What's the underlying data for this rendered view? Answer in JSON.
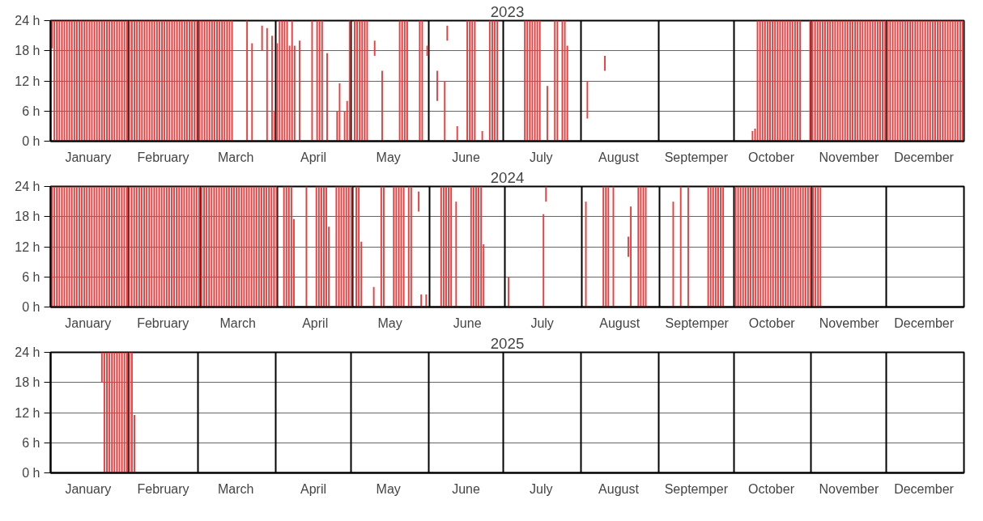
{
  "chart_data": [
    {
      "type": "bar",
      "title": "2023",
      "color": "#f03c3c",
      "grid": true,
      "xlim": [
        "2023-01-01",
        "2024-01-01"
      ],
      "xticks": [
        {
          "value": "2023-01-16",
          "label": "January"
        },
        {
          "value": "2023-02-01",
          "label": null
        },
        {
          "value": "2023-02-15",
          "label": "February"
        },
        {
          "value": "2023-03-01",
          "label": null
        },
        {
          "value": "2023-03-16",
          "label": "March"
        },
        {
          "value": "2023-04-01",
          "label": null
        },
        {
          "value": "2023-04-16",
          "label": "April"
        },
        {
          "value": "2023-05-01",
          "label": null
        },
        {
          "value": "2023-05-16",
          "label": "May"
        },
        {
          "value": "2023-06-01",
          "label": null
        },
        {
          "value": "2023-06-16",
          "label": "June"
        },
        {
          "value": "2023-07-01",
          "label": null
        },
        {
          "value": "2023-07-16",
          "label": "July"
        },
        {
          "value": "2023-08-01",
          "label": null
        },
        {
          "value": "2023-08-16",
          "label": "August"
        },
        {
          "value": "2023-09-01",
          "label": null
        },
        {
          "value": "2023-09-16",
          "label": "Septemper"
        },
        {
          "value": "2023-10-01",
          "label": null
        },
        {
          "value": "2023-10-16",
          "label": "October"
        },
        {
          "value": "2023-11-01",
          "label": null
        },
        {
          "value": "2023-11-16",
          "label": "November"
        },
        {
          "value": "2023-12-01",
          "label": null
        },
        {
          "value": "2023-12-16",
          "label": "December"
        }
      ],
      "ylim": [
        0,
        24
      ],
      "yticks": [
        {
          "value": 0,
          "label": "0 h"
        },
        {
          "value": 6,
          "label": "6 h"
        },
        {
          "value": 12,
          "label": "12 h"
        },
        {
          "value": 18,
          "label": "18 h"
        },
        {
          "value": 24,
          "label": "24 h"
        }
      ],
      "x": [
        "2023-01-01",
        "2023-01-02",
        "2023-01-03",
        "2023-01-04",
        "2023-01-05",
        "2023-01-06",
        "2023-01-07",
        "2023-01-08",
        "2023-01-09",
        "2023-01-10",
        "2023-01-11",
        "2023-01-12",
        "2023-01-13",
        "2023-01-14",
        "2023-01-15",
        "2023-01-16",
        "2023-01-17",
        "2023-01-18",
        "2023-01-19",
        "2023-01-20",
        "2023-01-21",
        "2023-01-22",
        "2023-01-23",
        "2023-01-24",
        "2023-01-25",
        "2023-01-26",
        "2023-01-27",
        "2023-01-28",
        "2023-01-29",
        "2023-01-30",
        "2023-01-31",
        "2023-02-01",
        "2023-02-02",
        "2023-02-03",
        "2023-02-04",
        "2023-02-05",
        "2023-02-06",
        "2023-02-07",
        "2023-02-08",
        "2023-02-09",
        "2023-02-10",
        "2023-02-11",
        "2023-02-12",
        "2023-02-13",
        "2023-02-14",
        "2023-02-15",
        "2023-02-16",
        "2023-02-17",
        "2023-02-18",
        "2023-02-19",
        "2023-02-20",
        "2023-02-21",
        "2023-02-22",
        "2023-02-23",
        "2023-02-24",
        "2023-02-25",
        "2023-02-26",
        "2023-02-27",
        "2023-02-28",
        "2023-03-01",
        "2023-03-02",
        "2023-03-03",
        "2023-03-04",
        "2023-03-05",
        "2023-03-06",
        "2023-03-07",
        "2023-03-08",
        "2023-03-09",
        "2023-03-10",
        "2023-03-11",
        "2023-03-12",
        "2023-03-13",
        "2023-03-14",
        "2023-03-20",
        "2023-03-22",
        "2023-03-26",
        "2023-03-28",
        "2023-03-30",
        "2023-03-31",
        "2023-04-01",
        "2023-04-02",
        "2023-04-03",
        "2023-04-04",
        "2023-04-05",
        "2023-04-06",
        "2023-04-07",
        "2023-04-08",
        "2023-04-10",
        "2023-04-15",
        "2023-04-17",
        "2023-04-18",
        "2023-04-19",
        "2023-04-21",
        "2023-04-25",
        "2023-04-26",
        "2023-04-28",
        "2023-04-29",
        "2023-04-30",
        "2023-05-02",
        "2023-05-03",
        "2023-05-04",
        "2023-05-05",
        "2023-05-06",
        "2023-05-07",
        "2023-05-10",
        "2023-05-13",
        "2023-05-20",
        "2023-05-21",
        "2023-05-22",
        "2023-05-23",
        "2023-05-28",
        "2023-05-29",
        "2023-05-31",
        "2023-06-04",
        "2023-06-07",
        "2023-06-08",
        "2023-06-12",
        "2023-06-16",
        "2023-06-17",
        "2023-06-18",
        "2023-06-19",
        "2023-06-22",
        "2023-06-25",
        "2023-06-26",
        "2023-06-27",
        "2023-06-28",
        "2023-07-09",
        "2023-07-10",
        "2023-07-11",
        "2023-07-12",
        "2023-07-13",
        "2023-07-14",
        "2023-07-15",
        "2023-07-18",
        "2023-07-21",
        "2023-07-22",
        "2023-07-24",
        "2023-07-25",
        "2023-07-26",
        "2023-08-03",
        "2023-08-10",
        "2023-10-08",
        "2023-10-09",
        "2023-10-10",
        "2023-10-11",
        "2023-10-12",
        "2023-10-13",
        "2023-10-14",
        "2023-10-15",
        "2023-10-16",
        "2023-10-17",
        "2023-10-18",
        "2023-10-19",
        "2023-10-20",
        "2023-10-21",
        "2023-10-22",
        "2023-10-23",
        "2023-10-24",
        "2023-10-25",
        "2023-10-26",
        "2023-10-27",
        "2023-10-31",
        "2023-11-01",
        "2023-11-02",
        "2023-11-03",
        "2023-11-04",
        "2023-11-05",
        "2023-11-06",
        "2023-11-07",
        "2023-11-08",
        "2023-11-09",
        "2023-11-10",
        "2023-11-11",
        "2023-11-12",
        "2023-11-13",
        "2023-11-14",
        "2023-11-15",
        "2023-11-16",
        "2023-11-17",
        "2023-11-18",
        "2023-11-19",
        "2023-11-20",
        "2023-11-21",
        "2023-11-22",
        "2023-11-23",
        "2023-11-24",
        "2023-11-25",
        "2023-11-26",
        "2023-11-27",
        "2023-11-28",
        "2023-11-29",
        "2023-11-30",
        "2023-12-01",
        "2023-12-02",
        "2023-12-03",
        "2023-12-04",
        "2023-12-05",
        "2023-12-06",
        "2023-12-07",
        "2023-12-08",
        "2023-12-09",
        "2023-12-10",
        "2023-12-11",
        "2023-12-12",
        "2023-12-13",
        "2023-12-14",
        "2023-12-15",
        "2023-12-16",
        "2023-12-17",
        "2023-12-18",
        "2023-12-19",
        "2023-12-20",
        "2023-12-21",
        "2023-12-22",
        "2023-12-23",
        "2023-12-24",
        "2023-12-25",
        "2023-12-26",
        "2023-12-27",
        "2023-12-28",
        "2023-12-29",
        "2023-12-30",
        "2023-12-31"
      ],
      "base": [
        18.5,
        0,
        0,
        0,
        0,
        0,
        0,
        0,
        0,
        0,
        0,
        0,
        0,
        0,
        0,
        0,
        0,
        0,
        0,
        0,
        0,
        0,
        0,
        0,
        0,
        0,
        0,
        0,
        0,
        0,
        0,
        0,
        0,
        0,
        0,
        0,
        0,
        0,
        0,
        0,
        0,
        0,
        0,
        0,
        0,
        0,
        0,
        0,
        0,
        0,
        0,
        0,
        0,
        0,
        0,
        0,
        0,
        0,
        0,
        0,
        0,
        0,
        0,
        0,
        0,
        0,
        0,
        0,
        0,
        0,
        0,
        0,
        0,
        0,
        0,
        18,
        0,
        0,
        0,
        0,
        0,
        0,
        0,
        0,
        0,
        0,
        0,
        0,
        0,
        0,
        0,
        0,
        0,
        0,
        0,
        0,
        0,
        0,
        0,
        0,
        0,
        0,
        0,
        0,
        17,
        0,
        0,
        0,
        0,
        0,
        0,
        0,
        17,
        8,
        0,
        20,
        0,
        0,
        0,
        0,
        0,
        0,
        0,
        0,
        0,
        0,
        0,
        0,
        0,
        0,
        0,
        0,
        0,
        0,
        0,
        0,
        0,
        0,
        0,
        4.5,
        14,
        0,
        0,
        0,
        0,
        0,
        0,
        0,
        0,
        0,
        0,
        0,
        0,
        0,
        0,
        0,
        0,
        0,
        0,
        0,
        0,
        0,
        0,
        0,
        0,
        0,
        0,
        0,
        0,
        0,
        0,
        0,
        0,
        0,
        0,
        0,
        0,
        0,
        0,
        0,
        0,
        0,
        0,
        0,
        0,
        0,
        0,
        0,
        0,
        0,
        0,
        0,
        0,
        0,
        0,
        0,
        0,
        0,
        0,
        0,
        0,
        0,
        0,
        0,
        0,
        0,
        0,
        0,
        0,
        0,
        0,
        0,
        0,
        0,
        0,
        0,
        0,
        0,
        0,
        0,
        0,
        0,
        0
      ],
      "values": [
        5.5,
        24,
        24,
        24,
        24,
        24,
        24,
        24,
        24,
        24,
        24,
        24,
        24,
        24,
        24,
        24,
        24,
        24,
        24,
        24,
        24,
        24,
        24,
        24,
        24,
        24,
        24,
        24,
        24,
        24,
        24,
        24,
        24,
        24,
        24,
        24,
        24,
        24,
        24,
        24,
        24,
        24,
        24,
        24,
        24,
        24,
        24,
        24,
        24,
        24,
        24,
        24,
        24,
        24,
        24,
        24,
        24,
        24,
        24,
        24,
        24,
        24,
        24,
        24,
        24,
        24,
        24,
        24,
        24,
        24,
        24,
        24,
        24,
        24,
        19.5,
        5,
        22.5,
        21,
        6,
        19.5,
        24,
        24,
        24,
        24,
        19,
        24,
        19,
        20,
        24,
        24,
        24,
        24,
        17.5,
        6,
        11.5,
        6,
        8,
        24,
        24,
        24,
        24,
        24,
        24,
        24,
        3,
        14,
        24,
        24,
        24,
        24,
        24,
        24,
        2,
        6,
        12,
        3,
        3,
        24,
        24,
        24,
        24,
        2,
        24,
        24,
        24,
        24,
        24,
        24,
        24,
        24,
        24,
        24,
        24,
        11,
        24,
        24,
        24,
        24,
        19,
        7.5,
        3,
        2,
        2.5,
        24,
        24,
        24,
        24,
        24,
        24,
        24,
        24,
        24,
        24,
        24,
        24,
        24,
        24,
        24,
        24,
        24,
        24,
        24,
        24,
        24,
        24,
        24,
        24,
        24,
        24,
        24,
        24,
        24,
        24,
        24,
        24,
        24,
        24,
        24,
        24,
        24,
        24,
        24,
        24,
        24,
        24,
        24,
        24,
        24,
        24,
        24,
        24,
        24,
        24,
        24,
        24,
        24,
        24,
        24,
        24,
        24,
        24,
        24,
        24,
        24,
        24,
        24,
        24,
        24,
        24,
        24,
        24,
        24,
        24,
        24,
        24,
        24,
        24,
        24,
        24,
        24,
        24,
        24,
        24
      ]
    },
    {
      "type": "bar",
      "title": "2024",
      "color": "#f03c3c",
      "grid": true,
      "xlim": [
        "2024-01-01",
        "2025-01-01"
      ],
      "xticks": [
        {
          "value": "2024-01-16",
          "label": "January"
        },
        {
          "value": "2024-02-01",
          "label": null
        },
        {
          "value": "2024-02-15",
          "label": "February"
        },
        {
          "value": "2024-03-01",
          "label": null
        },
        {
          "value": "2024-03-16",
          "label": "March"
        },
        {
          "value": "2024-04-01",
          "label": null
        },
        {
          "value": "2024-04-16",
          "label": "April"
        },
        {
          "value": "2024-05-01",
          "label": null
        },
        {
          "value": "2024-05-16",
          "label": "May"
        },
        {
          "value": "2024-06-01",
          "label": null
        },
        {
          "value": "2024-06-16",
          "label": "June"
        },
        {
          "value": "2024-07-01",
          "label": null
        },
        {
          "value": "2024-07-16",
          "label": "July"
        },
        {
          "value": "2024-08-01",
          "label": null
        },
        {
          "value": "2024-08-16",
          "label": "August"
        },
        {
          "value": "2024-09-01",
          "label": null
        },
        {
          "value": "2024-09-16",
          "label": "Septemper"
        },
        {
          "value": "2024-10-01",
          "label": null
        },
        {
          "value": "2024-10-16",
          "label": "October"
        },
        {
          "value": "2024-11-01",
          "label": null
        },
        {
          "value": "2024-11-16",
          "label": "November"
        },
        {
          "value": "2024-12-01",
          "label": null
        },
        {
          "value": "2024-12-16",
          "label": "December"
        }
      ],
      "ylim": [
        0,
        24
      ],
      "yticks": [
        {
          "value": 0,
          "label": "0 h"
        },
        {
          "value": 6,
          "label": "6 h"
        },
        {
          "value": 12,
          "label": "12 h"
        },
        {
          "value": 18,
          "label": "18 h"
        },
        {
          "value": 24,
          "label": "24 h"
        }
      ],
      "x": [
        "2024-01-01",
        "2024-01-02",
        "2024-01-03",
        "2024-01-04",
        "2024-01-05",
        "2024-01-06",
        "2024-01-07",
        "2024-01-08",
        "2024-01-09",
        "2024-01-10",
        "2024-01-11",
        "2024-01-12",
        "2024-01-13",
        "2024-01-14",
        "2024-01-15",
        "2024-01-16",
        "2024-01-17",
        "2024-01-18",
        "2024-01-19",
        "2024-01-20",
        "2024-01-21",
        "2024-01-22",
        "2024-01-23",
        "2024-01-24",
        "2024-01-25",
        "2024-01-26",
        "2024-01-27",
        "2024-01-28",
        "2024-01-29",
        "2024-01-30",
        "2024-01-31",
        "2024-02-01",
        "2024-02-02",
        "2024-02-03",
        "2024-02-04",
        "2024-02-05",
        "2024-02-06",
        "2024-02-07",
        "2024-02-08",
        "2024-02-09",
        "2024-02-10",
        "2024-02-11",
        "2024-02-12",
        "2024-02-13",
        "2024-02-14",
        "2024-02-15",
        "2024-02-16",
        "2024-02-17",
        "2024-02-18",
        "2024-02-19",
        "2024-02-20",
        "2024-02-21",
        "2024-02-22",
        "2024-02-23",
        "2024-02-24",
        "2024-02-25",
        "2024-02-26",
        "2024-02-27",
        "2024-02-28",
        "2024-02-29",
        "2024-03-01",
        "2024-03-02",
        "2024-03-03",
        "2024-03-04",
        "2024-03-05",
        "2024-03-06",
        "2024-03-07",
        "2024-03-08",
        "2024-03-09",
        "2024-03-10",
        "2024-03-11",
        "2024-03-12",
        "2024-03-13",
        "2024-03-14",
        "2024-03-15",
        "2024-03-16",
        "2024-03-17",
        "2024-03-18",
        "2024-03-19",
        "2024-03-20",
        "2024-03-21",
        "2024-03-22",
        "2024-03-23",
        "2024-03-24",
        "2024-03-25",
        "2024-03-26",
        "2024-03-27",
        "2024-03-28",
        "2024-03-29",
        "2024-03-30",
        "2024-03-31",
        "2024-04-03",
        "2024-04-04",
        "2024-04-05",
        "2024-04-06",
        "2024-04-07",
        "2024-04-12",
        "2024-04-16",
        "2024-04-17",
        "2024-04-18",
        "2024-04-19",
        "2024-04-20",
        "2024-04-21",
        "2024-04-24",
        "2024-04-25",
        "2024-04-26",
        "2024-04-27",
        "2024-04-28",
        "2024-04-29",
        "2024-04-30",
        "2024-05-02",
        "2024-05-03",
        "2024-05-04",
        "2024-05-09",
        "2024-05-12",
        "2024-05-13",
        "2024-05-17",
        "2024-05-18",
        "2024-05-19",
        "2024-05-20",
        "2024-05-21",
        "2024-05-23",
        "2024-05-24",
        "2024-05-27",
        "2024-05-28",
        "2024-05-30",
        "2024-06-05",
        "2024-06-06",
        "2024-06-07",
        "2024-06-08",
        "2024-06-09",
        "2024-06-11",
        "2024-06-17",
        "2024-06-18",
        "2024-06-19",
        "2024-06-20",
        "2024-06-21",
        "2024-06-22",
        "2024-07-02",
        "2024-07-16",
        "2024-07-17",
        "2024-08-02",
        "2024-08-09",
        "2024-08-10",
        "2024-08-11",
        "2024-08-13",
        "2024-08-19",
        "2024-08-20",
        "2024-08-23",
        "2024-08-24",
        "2024-08-25",
        "2024-08-26",
        "2024-09-06",
        "2024-09-09",
        "2024-09-12",
        "2024-09-20",
        "2024-09-21",
        "2024-09-22",
        "2024-09-23",
        "2024-09-24",
        "2024-09-25",
        "2024-09-26",
        "2024-10-01",
        "2024-10-02",
        "2024-10-03",
        "2024-10-04",
        "2024-10-05",
        "2024-10-06",
        "2024-10-07",
        "2024-10-08",
        "2024-10-09",
        "2024-10-10",
        "2024-10-11",
        "2024-10-12",
        "2024-10-13",
        "2024-10-14",
        "2024-10-15",
        "2024-10-16",
        "2024-10-17",
        "2024-10-18",
        "2024-10-19",
        "2024-10-20",
        "2024-10-21",
        "2024-10-22",
        "2024-10-23",
        "2024-10-24",
        "2024-10-25",
        "2024-10-26",
        "2024-10-27",
        "2024-10-28",
        "2024-10-29",
        "2024-10-30",
        "2024-10-31",
        "2024-11-01",
        "2024-11-02",
        "2024-11-03",
        "2024-11-04"
      ],
      "base": [
        0,
        0,
        0,
        0,
        0,
        0,
        0,
        0,
        0,
        0,
        0,
        0,
        0,
        0,
        0,
        0,
        0,
        0,
        0,
        0,
        0,
        0,
        0,
        0,
        0,
        0,
        0,
        0,
        0,
        0,
        0,
        0,
        0,
        0,
        0,
        0,
        0,
        0,
        0,
        0,
        0,
        0,
        0,
        0,
        0,
        0,
        0,
        0,
        0,
        0,
        0,
        0,
        0,
        0,
        0,
        0,
        0,
        0,
        0,
        0,
        0,
        0,
        0,
        0,
        0,
        0,
        0,
        0,
        0,
        0,
        0,
        0,
        0,
        0,
        0,
        0,
        0,
        0,
        0,
        0,
        0,
        0,
        0,
        0,
        0,
        0,
        0,
        0,
        0,
        0,
        0,
        0,
        0,
        0,
        0,
        0,
        0,
        0,
        0,
        0,
        0,
        0,
        0,
        0,
        0,
        0,
        0,
        0,
        0,
        0,
        0,
        0,
        0,
        0,
        0,
        0,
        0,
        0,
        0,
        0,
        0,
        0,
        0,
        19,
        0,
        0,
        0,
        0,
        0,
        0,
        0,
        0,
        0,
        0,
        0,
        0,
        0,
        0,
        0,
        0,
        21,
        0,
        0,
        0,
        0,
        0,
        10,
        0,
        0,
        0,
        0,
        0,
        0,
        0,
        0,
        0,
        0,
        0,
        0,
        0,
        0,
        0,
        0,
        0,
        0,
        0,
        0,
        0,
        0,
        0,
        0,
        0,
        0,
        0,
        0,
        0,
        0,
        0,
        0,
        0,
        0,
        0,
        0,
        0,
        0,
        0,
        0,
        0,
        0,
        0,
        0,
        0,
        0,
        0,
        0,
        0,
        0
      ],
      "values": [
        24,
        24,
        24,
        24,
        24,
        24,
        24,
        24,
        24,
        24,
        24,
        24,
        24,
        24,
        24,
        24,
        24,
        24,
        24,
        24,
        24,
        24,
        24,
        24,
        24,
        24,
        24,
        24,
        24,
        24,
        24,
        24,
        24,
        24,
        24,
        24,
        24,
        24,
        24,
        24,
        24,
        24,
        24,
        24,
        24,
        24,
        24,
        24,
        24,
        24,
        24,
        24,
        24,
        24,
        24,
        24,
        24,
        24,
        24,
        24,
        24,
        24,
        24,
        24,
        24,
        24,
        24,
        24,
        24,
        24,
        24,
        24,
        24,
        24,
        24,
        24,
        24,
        24,
        24,
        24,
        24,
        24,
        24,
        24,
        24,
        24,
        24,
        24,
        24,
        24,
        24,
        24,
        24,
        24,
        24,
        17.5,
        24,
        24,
        24,
        24,
        24,
        24,
        16,
        24,
        24,
        24,
        24,
        24,
        24,
        24,
        24,
        24,
        13,
        4,
        24,
        24,
        24,
        24,
        24,
        24,
        24,
        24,
        24,
        4,
        2.5,
        2.5,
        24,
        24,
        24,
        24,
        24,
        21,
        24,
        24,
        24,
        24,
        24,
        12.5,
        6,
        18.5,
        3,
        21,
        24,
        24,
        24,
        24,
        4,
        20,
        24,
        24,
        24,
        24,
        21,
        24,
        24,
        24,
        24,
        24,
        24,
        24,
        24,
        24,
        24,
        24,
        24,
        24,
        24,
        24,
        24,
        24,
        24,
        24,
        24,
        24,
        24,
        24,
        24,
        24,
        24,
        24,
        24,
        24,
        24,
        24,
        24,
        24,
        24,
        24,
        24,
        24,
        24,
        24,
        24,
        24,
        24,
        24,
        24
      ]
    },
    {
      "type": "bar",
      "title": "2025",
      "color": "#f03c3c",
      "grid": true,
      "xlim": [
        "2025-01-01",
        "2026-01-01"
      ],
      "xticks": [
        {
          "value": "2025-01-16",
          "label": "January"
        },
        {
          "value": "2025-02-01",
          "label": null
        },
        {
          "value": "2025-02-15",
          "label": "February"
        },
        {
          "value": "2025-03-01",
          "label": null
        },
        {
          "value": "2025-03-16",
          "label": "March"
        },
        {
          "value": "2025-04-01",
          "label": null
        },
        {
          "value": "2025-04-16",
          "label": "April"
        },
        {
          "value": "2025-05-01",
          "label": null
        },
        {
          "value": "2025-05-16",
          "label": "May"
        },
        {
          "value": "2025-06-01",
          "label": null
        },
        {
          "value": "2025-06-16",
          "label": "June"
        },
        {
          "value": "2025-07-01",
          "label": null
        },
        {
          "value": "2025-07-16",
          "label": "July"
        },
        {
          "value": "2025-08-01",
          "label": null
        },
        {
          "value": "2025-08-16",
          "label": "August"
        },
        {
          "value": "2025-09-01",
          "label": null
        },
        {
          "value": "2025-09-16",
          "label": "Septemper"
        },
        {
          "value": "2025-10-01",
          "label": null
        },
        {
          "value": "2025-10-16",
          "label": "October"
        },
        {
          "value": "2025-11-01",
          "label": null
        },
        {
          "value": "2025-11-16",
          "label": "November"
        },
        {
          "value": "2025-12-01",
          "label": null
        },
        {
          "value": "2025-12-16",
          "label": "December"
        }
      ],
      "ylim": [
        0,
        24
      ],
      "yticks": [
        {
          "value": 0,
          "label": "0 h"
        },
        {
          "value": 6,
          "label": "6 h"
        },
        {
          "value": 12,
          "label": "12 h"
        },
        {
          "value": 18,
          "label": "18 h"
        },
        {
          "value": 24,
          "label": "24 h"
        }
      ],
      "x": [
        "2025-01-21",
        "2025-01-22",
        "2025-01-23",
        "2025-01-24",
        "2025-01-25",
        "2025-01-26",
        "2025-01-27",
        "2025-01-28",
        "2025-01-29",
        "2025-01-30",
        "2025-01-31",
        "2025-02-01",
        "2025-02-02",
        "2025-02-03"
      ],
      "base": [
        18,
        0,
        0,
        0,
        0,
        0,
        0,
        0,
        0,
        0,
        0,
        0,
        0,
        0
      ],
      "values": [
        6,
        24,
        24,
        24,
        24,
        24,
        24,
        24,
        24,
        24,
        24,
        24,
        24,
        11.5
      ]
    }
  ]
}
